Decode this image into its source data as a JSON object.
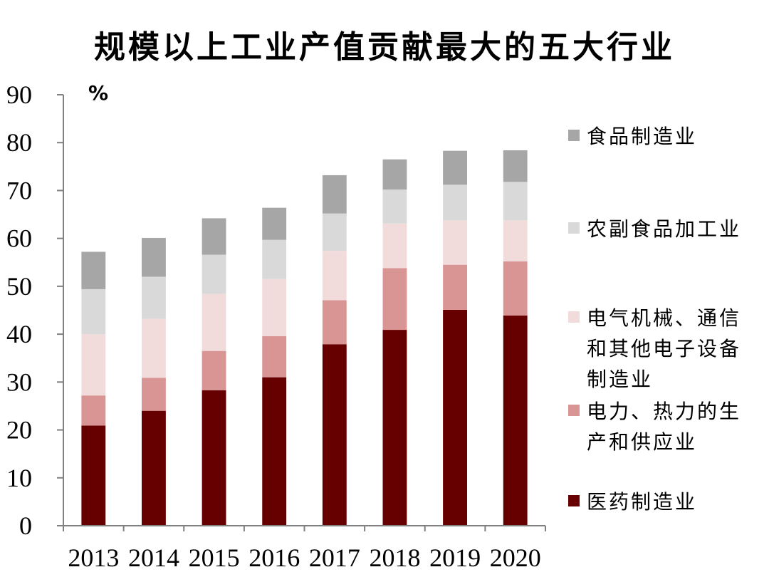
{
  "chart_data": {
    "type": "bar",
    "stacked": true,
    "title": "规模以上工业产值贡献最大的五大行业",
    "ylabel": "%",
    "xlabel": "",
    "ylim": [
      0,
      90
    ],
    "yticks": [
      0,
      10,
      20,
      30,
      40,
      50,
      60,
      70,
      80,
      90
    ],
    "categories": [
      "2013",
      "2014",
      "2015",
      "2016",
      "2017",
      "2018",
      "2019",
      "2020"
    ],
    "series": [
      {
        "name": "医药制造业",
        "color": "#660000",
        "values": [
          20.9,
          24.0,
          28.3,
          31.0,
          37.9,
          40.9,
          45.1,
          43.9
        ]
      },
      {
        "name": "电力、热力的生产和供应业",
        "color": "#d99594",
        "values": [
          6.3,
          6.9,
          8.2,
          8.6,
          9.2,
          12.9,
          9.4,
          11.3
        ]
      },
      {
        "name": "电气机械、通信和其他电子设备制造业",
        "color": "#f2dcdb",
        "values": [
          12.8,
          12.3,
          11.9,
          11.9,
          10.3,
          9.3,
          9.3,
          8.6
        ]
      },
      {
        "name": "农副食品加工业",
        "color": "#d9d9d9",
        "values": [
          9.4,
          8.8,
          8.2,
          8.2,
          7.8,
          7.1,
          7.4,
          8.0
        ]
      },
      {
        "name": "食品制造业",
        "color": "#a6a6a6",
        "values": [
          7.8,
          8.1,
          7.6,
          6.7,
          8.0,
          6.3,
          7.1,
          6.6
        ]
      }
    ],
    "legend_position": "right",
    "grid": false
  },
  "legend_order": [
    4,
    3,
    2,
    1,
    0
  ]
}
